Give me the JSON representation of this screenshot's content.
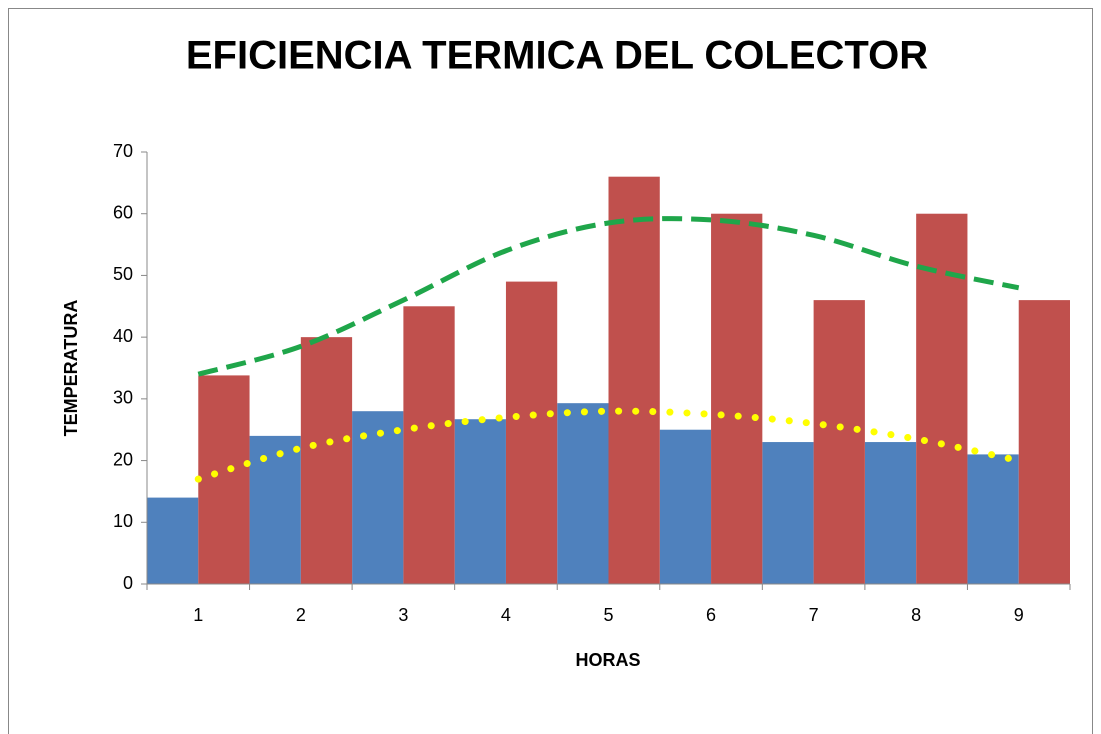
{
  "chart_data": {
    "type": "bar",
    "title": "EFICIENCIA TERMICA DEL COLECTOR",
    "x_label": "HORAS",
    "y_label": "TEMPERATURA",
    "categories": [
      "1",
      "2",
      "3",
      "4",
      "5",
      "6",
      "7",
      "8",
      "9"
    ],
    "series": [
      {
        "color": "#4f81bd",
        "values": [
          14,
          24,
          28,
          26.7,
          29.3,
          25,
          23,
          23,
          21
        ]
      },
      {
        "color": "#c0504d",
        "values": [
          33.8,
          40,
          45,
          49,
          66,
          60,
          46,
          60,
          46
        ]
      }
    ],
    "trendlines": [
      {
        "color": "#1fa64a",
        "style": "dashed",
        "values": [
          34,
          38.5,
          46,
          54,
          58.5,
          59,
          56.5,
          51.5,
          48
        ]
      },
      {
        "color": "#ffff00",
        "style": "dotted",
        "values": [
          17,
          22,
          25,
          27,
          28,
          27.5,
          26,
          23.5,
          20
        ]
      }
    ],
    "ylim": [
      0,
      70
    ],
    "yticks": [
      0,
      10,
      20,
      30,
      40,
      50,
      60,
      70
    ],
    "grid": false
  }
}
